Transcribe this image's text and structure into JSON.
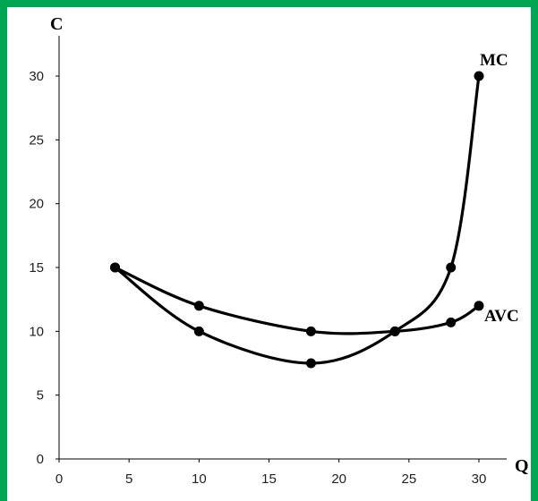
{
  "chart_data": {
    "type": "line",
    "title": "",
    "xlabel": "Q",
    "ylabel": "C",
    "xlim": [
      0,
      30
    ],
    "ylim": [
      0,
      30
    ],
    "x_ticks": [
      "0",
      "5",
      "10",
      "15",
      "20",
      "25",
      "30"
    ],
    "y_ticks": [
      "0",
      "5",
      "10",
      "15",
      "20",
      "25",
      "30"
    ],
    "grid": false,
    "frame_color": "#00a651",
    "line_color": "#000000",
    "series": [
      {
        "name": "MC",
        "points": [
          [
            4,
            15
          ],
          [
            10,
            10
          ],
          [
            18,
            7.5
          ],
          [
            24,
            10
          ],
          [
            28,
            15
          ],
          [
            30,
            30
          ]
        ]
      },
      {
        "name": "AVC",
        "points": [
          [
            4,
            15
          ],
          [
            10,
            12
          ],
          [
            18,
            10
          ],
          [
            24,
            10
          ],
          [
            28,
            10.7
          ],
          [
            30,
            12
          ]
        ]
      }
    ]
  }
}
